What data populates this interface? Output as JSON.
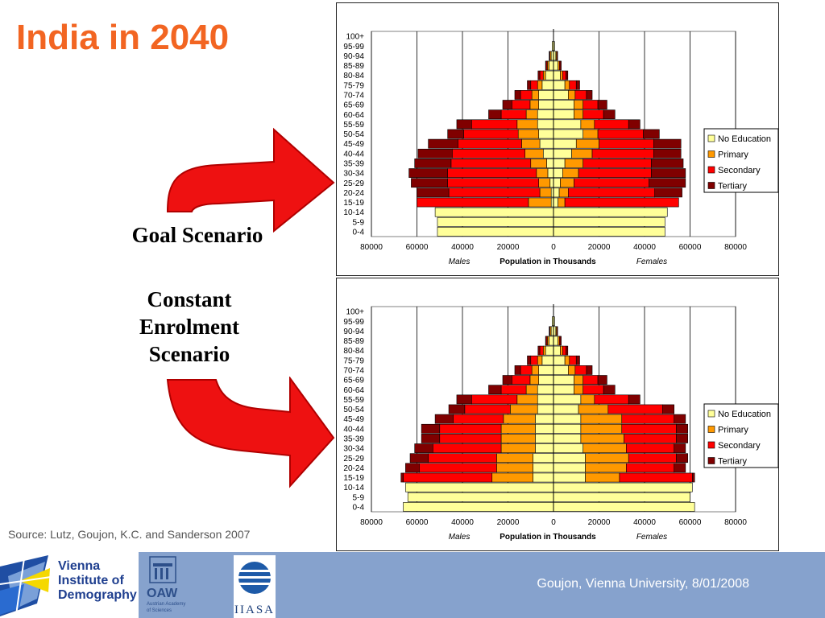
{
  "slide": {
    "title": "India in 2040",
    "goal_label": "Goal Scenario",
    "constant_label_lines": [
      "Constant",
      "Enrolment",
      "Scenario"
    ],
    "source": "Source: Lutz, Goujon, K.C. and Sanderson 2007",
    "footer": "Goujon,  Vienna University, 8/01/2008",
    "logos": {
      "vid": [
        "Vienna",
        "Institute of",
        "Demography"
      ],
      "oaw": "OAW",
      "oaw_sub": [
        "Austrian Academy",
        "of Sciences"
      ],
      "iiasa": "IIASA"
    },
    "colors": {
      "title": "#f26522",
      "arrow": "#ee1111",
      "footer_bg": "#86a2cd"
    }
  },
  "chart_data": [
    {
      "type": "population_pyramid",
      "title": "",
      "xlabel": "Population in Thousands",
      "left_label": "Males",
      "right_label": "Females",
      "x_ticks": [
        80000,
        60000,
        40000,
        20000,
        0,
        20000,
        40000,
        60000,
        80000
      ],
      "xlim": [
        -80000,
        80000
      ],
      "legend": [
        "No Education",
        "Primary",
        "Secondary",
        "Tertiary"
      ],
      "legend_position": "right",
      "colors": [
        "#ffff99",
        "#ff9900",
        "#ff0000",
        "#800000"
      ],
      "age_groups": [
        "100+",
        "95-99",
        "90-94",
        "85-89",
        "80-84",
        "75-79",
        "70-74",
        "65-69",
        "60-64",
        "55-59",
        "50-54",
        "45-49",
        "40-44",
        "35-39",
        "30-34",
        "25-29",
        "20-24",
        "15-19",
        "10-14",
        "5-9",
        "0-4"
      ],
      "males": [
        [
          0,
          0,
          0,
          0
        ],
        [
          600,
          0,
          0,
          0
        ],
        [
          1000,
          500,
          300,
          100
        ],
        [
          2000,
          700,
          500,
          300
        ],
        [
          3500,
          1000,
          1500,
          800
        ],
        [
          5000,
          2000,
          3000,
          1500
        ],
        [
          6500,
          3000,
          5000,
          2500
        ],
        [
          6500,
          3800,
          8000,
          4000
        ],
        [
          7000,
          5000,
          11000,
          5500
        ],
        [
          7000,
          9000,
          20000,
          6500
        ],
        [
          6500,
          9000,
          24000,
          7000
        ],
        [
          6000,
          8000,
          28000,
          13000
        ],
        [
          4500,
          8000,
          32000,
          15000
        ],
        [
          3000,
          7000,
          35000,
          16000
        ],
        [
          2500,
          5000,
          39000,
          17000
        ],
        [
          1500,
          5000,
          40000,
          16000
        ],
        [
          1000,
          5000,
          40000,
          14000
        ],
        [
          1000,
          10000,
          49000,
          0
        ],
        [
          52000,
          0,
          0,
          0
        ],
        [
          51000,
          0,
          0,
          0
        ],
        [
          51000,
          0,
          0,
          0
        ]
      ],
      "females": [
        [
          0,
          0,
          0,
          0
        ],
        [
          500,
          0,
          0,
          0
        ],
        [
          1000,
          400,
          300,
          100
        ],
        [
          2000,
          600,
          500,
          300
        ],
        [
          3000,
          1000,
          1500,
          800
        ],
        [
          5000,
          2000,
          3000,
          1500
        ],
        [
          6500,
          3000,
          5000,
          2500
        ],
        [
          9000,
          4000,
          6500,
          4000
        ],
        [
          9000,
          4000,
          9000,
          5000
        ],
        [
          12000,
          6000,
          15000,
          5000
        ],
        [
          13000,
          6500,
          20000,
          7000
        ],
        [
          10000,
          10000,
          24000,
          12000
        ],
        [
          8000,
          9000,
          27000,
          12000
        ],
        [
          5000,
          8000,
          30000,
          14000
        ],
        [
          4000,
          7000,
          32000,
          15000
        ],
        [
          3000,
          6000,
          33000,
          16000
        ],
        [
          2500,
          4000,
          38000,
          12000
        ],
        [
          2000,
          3000,
          50000,
          0
        ],
        [
          50000,
          0,
          0,
          0
        ],
        [
          49000,
          0,
          0,
          0
        ],
        [
          49000,
          0,
          0,
          0
        ]
      ]
    },
    {
      "type": "population_pyramid",
      "title": "",
      "xlabel": "Population in Thousands",
      "left_label": "Males",
      "right_label": "Females",
      "x_ticks": [
        80000,
        60000,
        40000,
        20000,
        0,
        20000,
        40000,
        60000,
        80000
      ],
      "xlim": [
        -80000,
        80000
      ],
      "legend": [
        "No Education",
        "Primary",
        "Secondary",
        "Tertiary"
      ],
      "legend_position": "right",
      "colors": [
        "#ffff99",
        "#ff9900",
        "#ff0000",
        "#800000"
      ],
      "age_groups": [
        "100+",
        "95-99",
        "90-94",
        "85-89",
        "80-84",
        "75-79",
        "70-74",
        "65-69",
        "60-64",
        "55-59",
        "50-54",
        "45-49",
        "40-44",
        "35-39",
        "30-34",
        "25-29",
        "20-24",
        "15-19",
        "10-14",
        "5-9",
        "0-4"
      ],
      "males": [
        [
          0,
          0,
          0,
          0
        ],
        [
          600,
          0,
          0,
          0
        ],
        [
          1000,
          500,
          300,
          100
        ],
        [
          2000,
          700,
          500,
          300
        ],
        [
          3500,
          1000,
          1500,
          800
        ],
        [
          5000,
          2000,
          3000,
          1500
        ],
        [
          6500,
          3000,
          5000,
          2500
        ],
        [
          6500,
          3800,
          8000,
          4000
        ],
        [
          7000,
          5000,
          11000,
          5500
        ],
        [
          7000,
          9000,
          20000,
          6500
        ],
        [
          7000,
          12000,
          20000,
          7000
        ],
        [
          8000,
          14000,
          22000,
          8000
        ],
        [
          8000,
          15000,
          27000,
          8000
        ],
        [
          8000,
          15000,
          27000,
          8000
        ],
        [
          8000,
          15000,
          30000,
          8000
        ],
        [
          9000,
          16000,
          30000,
          8000
        ],
        [
          9000,
          16000,
          34000,
          6000
        ],
        [
          9000,
          18000,
          39000,
          1000
        ],
        [
          65000,
          0,
          0,
          0
        ],
        [
          64000,
          0,
          0,
          0
        ],
        [
          66000,
          0,
          0,
          0
        ]
      ],
      "females": [
        [
          0,
          0,
          0,
          0
        ],
        [
          500,
          0,
          0,
          0
        ],
        [
          1000,
          400,
          300,
          100
        ],
        [
          2000,
          600,
          500,
          300
        ],
        [
          3000,
          1000,
          1500,
          800
        ],
        [
          5000,
          2000,
          3000,
          1500
        ],
        [
          6500,
          3000,
          5000,
          2500
        ],
        [
          9000,
          4000,
          6500,
          4000
        ],
        [
          9000,
          4000,
          9000,
          5000
        ],
        [
          12000,
          6000,
          15000,
          5000
        ],
        [
          11000,
          13000,
          24000,
          5000
        ],
        [
          12000,
          18000,
          23000,
          5000
        ],
        [
          12000,
          18000,
          24000,
          5000
        ],
        [
          12000,
          19000,
          23000,
          5000
        ],
        [
          13000,
          19000,
          21000,
          5000
        ],
        [
          14000,
          19000,
          21000,
          5000
        ],
        [
          14000,
          18000,
          21000,
          5000
        ],
        [
          14000,
          15000,
          32000,
          1000
        ],
        [
          61000,
          0,
          0,
          0
        ],
        [
          60000,
          0,
          0,
          0
        ],
        [
          62000,
          0,
          0,
          0
        ]
      ]
    }
  ]
}
